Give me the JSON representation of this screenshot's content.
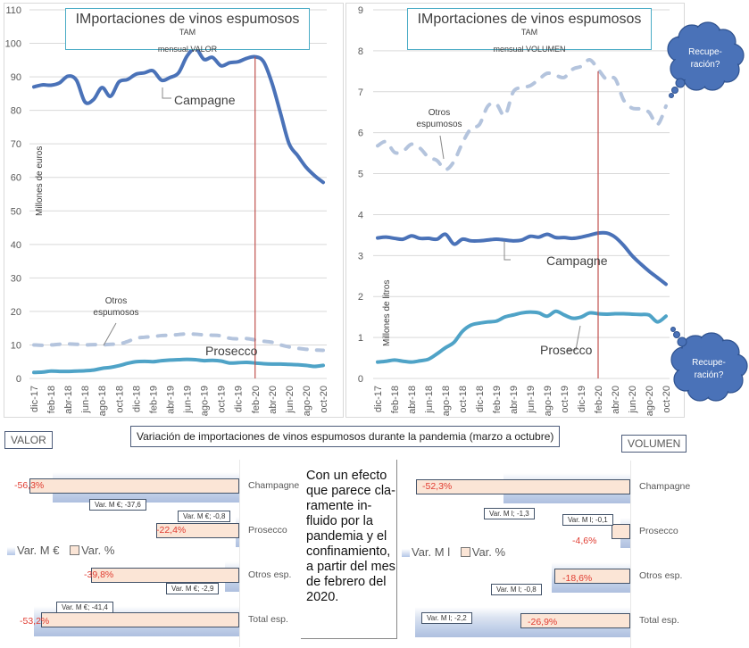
{
  "months": [
    "dic-17",
    "feb-18",
    "abr-18",
    "jun-18",
    "ago-18",
    "oct-18",
    "dic-18",
    "feb-19",
    "abr-19",
    "jun-19",
    "ago-19",
    "oct-19",
    "dic-19",
    "feb-20",
    "abr-20",
    "jun-20",
    "ago-20",
    "oct-20"
  ],
  "chart_data": [
    {
      "type": "line",
      "title": "IMportaciones de vinos espumosos",
      "title_sup": "TAM",
      "subtitle": "mensual VALOR",
      "ylabel": "Millones de euros",
      "xlabel": "",
      "ylim": [
        0,
        110
      ],
      "yticks": [
        0,
        10,
        20,
        30,
        40,
        50,
        60,
        70,
        80,
        90,
        100,
        110
      ],
      "grid": true,
      "vline_at": "feb-20",
      "x": [
        "dic-17",
        "ene-18",
        "feb-18",
        "mar-18",
        "abr-18",
        "may-18",
        "jun-18",
        "jul-18",
        "ago-18",
        "sep-18",
        "oct-18",
        "nov-18",
        "dic-18",
        "ene-19",
        "feb-19",
        "mar-19",
        "abr-19",
        "may-19",
        "jun-19",
        "jul-19",
        "ago-19",
        "sep-19",
        "oct-19",
        "nov-19",
        "dic-19",
        "ene-20",
        "feb-20",
        "mar-20",
        "abr-20",
        "may-20",
        "jun-20",
        "jul-20",
        "ago-20",
        "sep-20",
        "oct-20"
      ],
      "series": [
        {
          "name": "Campagne",
          "style": "solid",
          "color": "#4a72b8",
          "values": [
            87,
            87.6,
            87.5,
            88.2,
            90.2,
            89,
            82.5,
            83.2,
            86.8,
            84.2,
            88.5,
            89.2,
            90.8,
            91.2,
            91.8,
            89,
            89.8,
            91.2,
            96.2,
            98.5,
            95.2,
            95.8,
            93.3,
            94.2,
            94.5,
            95.5,
            96,
            94.5,
            88,
            79,
            70,
            66.5,
            63,
            60.5,
            58.5
          ]
        },
        {
          "name": "Otros espumosos",
          "style": "dashed",
          "color": "#b4c4dd",
          "values": [
            10,
            9.9,
            10,
            10.2,
            10.3,
            10.2,
            10,
            10.1,
            10,
            10.2,
            10.3,
            11,
            12,
            12.3,
            12.5,
            12.8,
            12.9,
            13.1,
            13.3,
            13.2,
            13,
            12.9,
            12.7,
            12,
            11.8,
            11.9,
            11.5,
            11.1,
            10.8,
            10,
            9.4,
            9,
            8.7,
            8.5,
            8.4
          ]
        },
        {
          "name": "Prosecco",
          "style": "solid",
          "color": "#4fa3c7",
          "values": [
            1.8,
            1.9,
            2.2,
            2.1,
            2.1,
            2.2,
            2.3,
            2.5,
            3,
            3.3,
            3.8,
            4.5,
            5,
            5.1,
            5,
            5.3,
            5.5,
            5.6,
            5.7,
            5.6,
            5.3,
            5.4,
            5.2,
            4.6,
            4.7,
            4.8,
            4.6,
            4.4,
            4.3,
            4.3,
            4.2,
            4.1,
            3.9,
            3.6,
            3.9
          ]
        }
      ],
      "annotations": [
        "Campagne",
        "Otros espumosos",
        "Prosecco"
      ]
    },
    {
      "type": "line",
      "title": "IMportaciones de vinos espumosos",
      "title_sup": "TAM",
      "subtitle": "mensual VOLUMEN",
      "ylabel": "Millones de litros",
      "xlabel": "",
      "ylim": [
        0,
        9
      ],
      "yticks": [
        0,
        1,
        2,
        3,
        4,
        5,
        6,
        7,
        8,
        9
      ],
      "grid": true,
      "vline_at": "feb-20",
      "x": [
        "dic-17",
        "ene-18",
        "feb-18",
        "mar-18",
        "abr-18",
        "may-18",
        "jun-18",
        "jul-18",
        "ago-18",
        "sep-18",
        "oct-18",
        "nov-18",
        "dic-18",
        "ene-19",
        "feb-19",
        "mar-19",
        "abr-19",
        "may-19",
        "jun-19",
        "jul-19",
        "ago-19",
        "sep-19",
        "oct-19",
        "nov-19",
        "dic-19",
        "ene-20",
        "feb-20",
        "mar-20",
        "abr-20",
        "may-20",
        "jun-20",
        "jul-20",
        "ago-20",
        "sep-20",
        "oct-20"
      ],
      "series": [
        {
          "name": "Otros espumosos",
          "style": "dashed",
          "color": "#b4c4dd",
          "values": [
            5.68,
            5.78,
            5.52,
            5.55,
            5.72,
            5.62,
            5.4,
            5.32,
            5.1,
            5.3,
            5.75,
            6.1,
            6.2,
            6.65,
            6.7,
            6.42,
            7.0,
            7.1,
            7.15,
            7.3,
            7.45,
            7.4,
            7.35,
            7.55,
            7.62,
            7.78,
            7.55,
            7.3,
            7.32,
            6.8,
            6.6,
            6.58,
            6.5,
            6.2,
            6.65
          ]
        },
        {
          "name": "Campagne",
          "style": "solid",
          "color": "#4a72b8",
          "values": [
            3.43,
            3.45,
            3.42,
            3.4,
            3.48,
            3.42,
            3.42,
            3.4,
            3.52,
            3.28,
            3.4,
            3.36,
            3.36,
            3.38,
            3.4,
            3.38,
            3.36,
            3.38,
            3.47,
            3.45,
            3.52,
            3.44,
            3.44,
            3.42,
            3.45,
            3.5,
            3.55,
            3.55,
            3.45,
            3.25,
            3.0,
            2.8,
            2.62,
            2.46,
            2.3
          ]
        },
        {
          "name": "Prosecco",
          "style": "solid",
          "color": "#4fa3c7",
          "values": [
            0.4,
            0.42,
            0.45,
            0.42,
            0.4,
            0.43,
            0.47,
            0.6,
            0.75,
            0.88,
            1.15,
            1.3,
            1.35,
            1.38,
            1.4,
            1.5,
            1.55,
            1.6,
            1.62,
            1.6,
            1.52,
            1.64,
            1.55,
            1.47,
            1.5,
            1.6,
            1.58,
            1.57,
            1.58,
            1.58,
            1.57,
            1.56,
            1.55,
            1.38,
            1.52
          ]
        }
      ],
      "annotations": [
        "Otros espumosos",
        "Campagne",
        "Prosecco"
      ],
      "callouts": [
        "Recupe-ración?",
        "Recupe-ración?"
      ]
    },
    {
      "type": "bar",
      "orientation": "horizontal",
      "title": "Variación de importaciones de vinos espumosos durante la pandemia (marzo a octubre)",
      "panel_label": "VALOR",
      "categories": [
        "Champagne",
        "Prosecco",
        "Otros esp.",
        "Total esp."
      ],
      "series": [
        {
          "name": "Var. M €",
          "values": [
            -37.6,
            -0.8,
            -2.9,
            -41.4
          ],
          "labels": [
            "Var. M €; -37,6",
            "Var. M €; -0,8",
            "Var. M €; -2,9",
            "Var. M €; -41,4"
          ]
        },
        {
          "name": "Var. %",
          "values": [
            -56.3,
            -22.4,
            -39.8,
            -53.2
          ],
          "labels": [
            "-56,3%",
            "-22,4%",
            "-39,8%",
            "-53,2%"
          ]
        }
      ],
      "xlim_abs": [
        -45,
        0
      ],
      "xlim_pct": [
        -60,
        0
      ],
      "legend": "left"
    },
    {
      "type": "bar",
      "orientation": "horizontal",
      "panel_label": "VOLUMEN",
      "categories": [
        "Champagne",
        "Prosecco",
        "Otros esp.",
        "Total esp."
      ],
      "series": [
        {
          "name": "Var. M l",
          "values": [
            -1.3,
            -0.1,
            -0.8,
            -2.2
          ],
          "labels": [
            "Var. M l; -1,3",
            "Var. M l; -0,1",
            "Var. M l; -0,8",
            "Var. M l; -2,2"
          ]
        },
        {
          "name": "Var. %",
          "values": [
            -52.3,
            -4.6,
            -18.6,
            -26.9
          ],
          "labels": [
            "-52,3%",
            "-4,6%",
            "-18,6%",
            "-26,9%"
          ]
        }
      ],
      "xlim_abs": [
        -2.3,
        0
      ],
      "xlim_pct": [
        -55,
        0
      ],
      "legend": "left"
    }
  ],
  "note_text": "Con un efecto que parece cla-ramente in-fluido por la pandemia y el confinamiento, a partir del mes de febrero del 2020."
}
